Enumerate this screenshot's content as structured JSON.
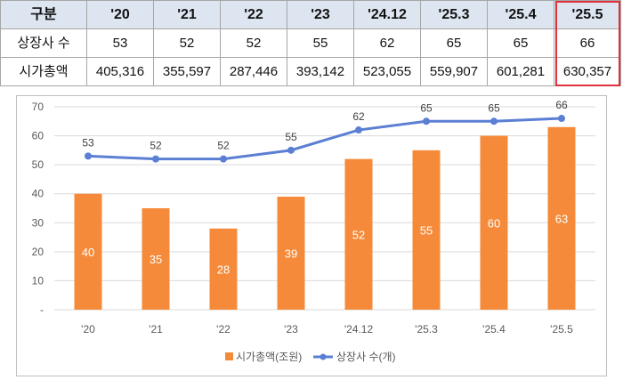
{
  "table": {
    "header": [
      "구분",
      "'20",
      "'21",
      "'22",
      "'23",
      "'24.12",
      "'25.3",
      "'25.4",
      "'25.5"
    ],
    "rows": [
      {
        "label": "상장사 수",
        "values": [
          "53",
          "52",
          "52",
          "55",
          "62",
          "65",
          "65",
          "66"
        ]
      },
      {
        "label": "시가총액",
        "values": [
          "405,316",
          "355,597",
          "287,446",
          "393,142",
          "523,055",
          "559,907",
          "601,281",
          "630,357"
        ]
      }
    ]
  },
  "chart_data": {
    "type": "bar",
    "categories": [
      "'20",
      "'21",
      "'22",
      "'23",
      "'24.12",
      "'25.3",
      "'25.4",
      "'25.5"
    ],
    "series": [
      {
        "name": "시가총액(조원)",
        "kind": "bar",
        "color": "#f58b3a",
        "values": [
          40,
          35,
          28,
          39,
          52,
          55,
          60,
          63
        ]
      },
      {
        "name": "상장사 수(개)",
        "kind": "line",
        "color": "#5b7fd3",
        "values": [
          53,
          52,
          52,
          55,
          62,
          65,
          65,
          66
        ]
      }
    ],
    "ylim": [
      0,
      70
    ],
    "yticks": [
      "-",
      "10",
      "20",
      "30",
      "40",
      "50",
      "60",
      "70"
    ],
    "grid": true,
    "legend": "bottom"
  }
}
